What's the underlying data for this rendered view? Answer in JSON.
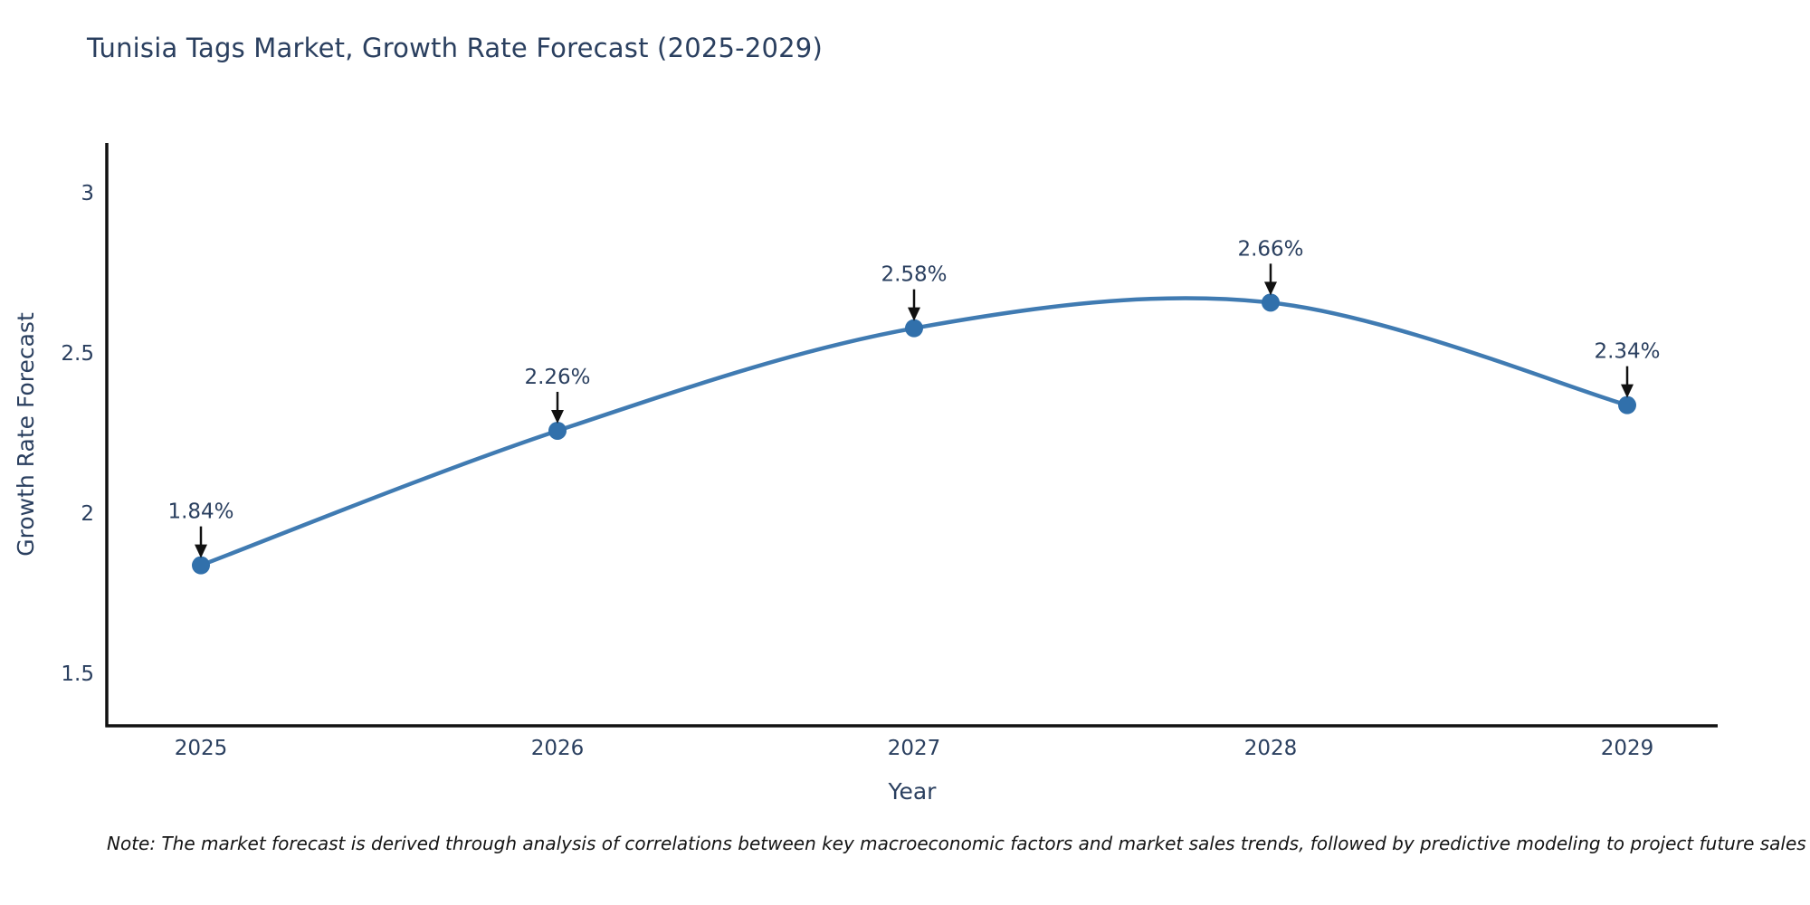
{
  "title": "Tunisia Tags Market, Growth Rate Forecast (2025-2029)",
  "note": "Note: The market forecast is derived through analysis of correlations between key macroeconomic factors and market sales trends, followed by predictive modeling to project future sales",
  "chart_data": {
    "type": "line",
    "title": "Tunisia Tags Market, Growth Rate Forecast (2025-2029)",
    "xlabel": "Year",
    "ylabel": "Growth Rate Forecast",
    "x": [
      2025,
      2026,
      2027,
      2028,
      2029
    ],
    "values": [
      1.84,
      2.26,
      2.58,
      2.66,
      2.34
    ],
    "point_labels": [
      "1.84%",
      "2.26%",
      "2.58%",
      "2.66%",
      "2.34%"
    ],
    "yticks": [
      3,
      2.5,
      2,
      1.5
    ],
    "ylim": [
      1.34,
      3.16
    ],
    "line_shape": "spline",
    "grid": false,
    "legend": "none",
    "annotations": "value labels with down arrows above each point",
    "colors": {
      "line": "#407bb2",
      "marker": "#3170ab",
      "axis": "#111111",
      "text": "#2a3f5f",
      "arrow": "#111111"
    }
  }
}
